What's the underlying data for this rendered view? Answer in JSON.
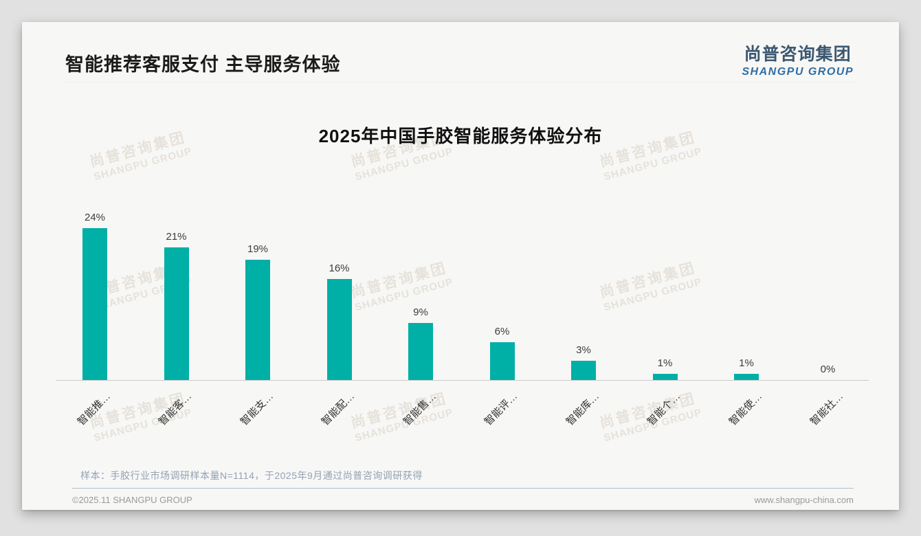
{
  "header": {
    "title": "智能推荐客服支付 主导服务体验"
  },
  "logo": {
    "cn": "尚普咨询集团",
    "en": "SHANGPU GROUP"
  },
  "watermark": {
    "cn": "尚普咨询集团",
    "en": "SHANGPU GROUP"
  },
  "chart_data": {
    "type": "bar",
    "title": "2025年中国手胶智能服务体验分布",
    "categories": [
      "智能推…",
      "智能客…",
      "智能支…",
      "智能配…",
      "智能售…",
      "智能评…",
      "智能库…",
      "智能个…",
      "智能使…",
      "智能社…"
    ],
    "values": [
      24,
      21,
      19,
      16,
      9,
      6,
      3,
      1,
      1,
      0
    ],
    "value_labels": [
      "24%",
      "21%",
      "19%",
      "16%",
      "9%",
      "6%",
      "3%",
      "1%",
      "1%",
      "0%"
    ],
    "unit": "%",
    "ylim": [
      0,
      26
    ],
    "grid": false,
    "legend": false,
    "bar_color": "#00AFA6"
  },
  "footer": {
    "note": "样本：手胶行业市场调研样本量N=1114，于2025年9月通过尚普咨询调研获得",
    "copyright": "©2025.11 SHANGPU GROUP",
    "website": "www.shangpu-china.com"
  },
  "colors": {
    "bar": "#00AFA6",
    "logo_cn": "#3B5871",
    "logo_en": "#2E6DA4",
    "note_text": "#93A2B4",
    "axis_line": "#CBCBCB",
    "watermark": "#E6E2DA",
    "card_bg": "#F7F7F6",
    "page_bg": "#E1E1E1"
  }
}
